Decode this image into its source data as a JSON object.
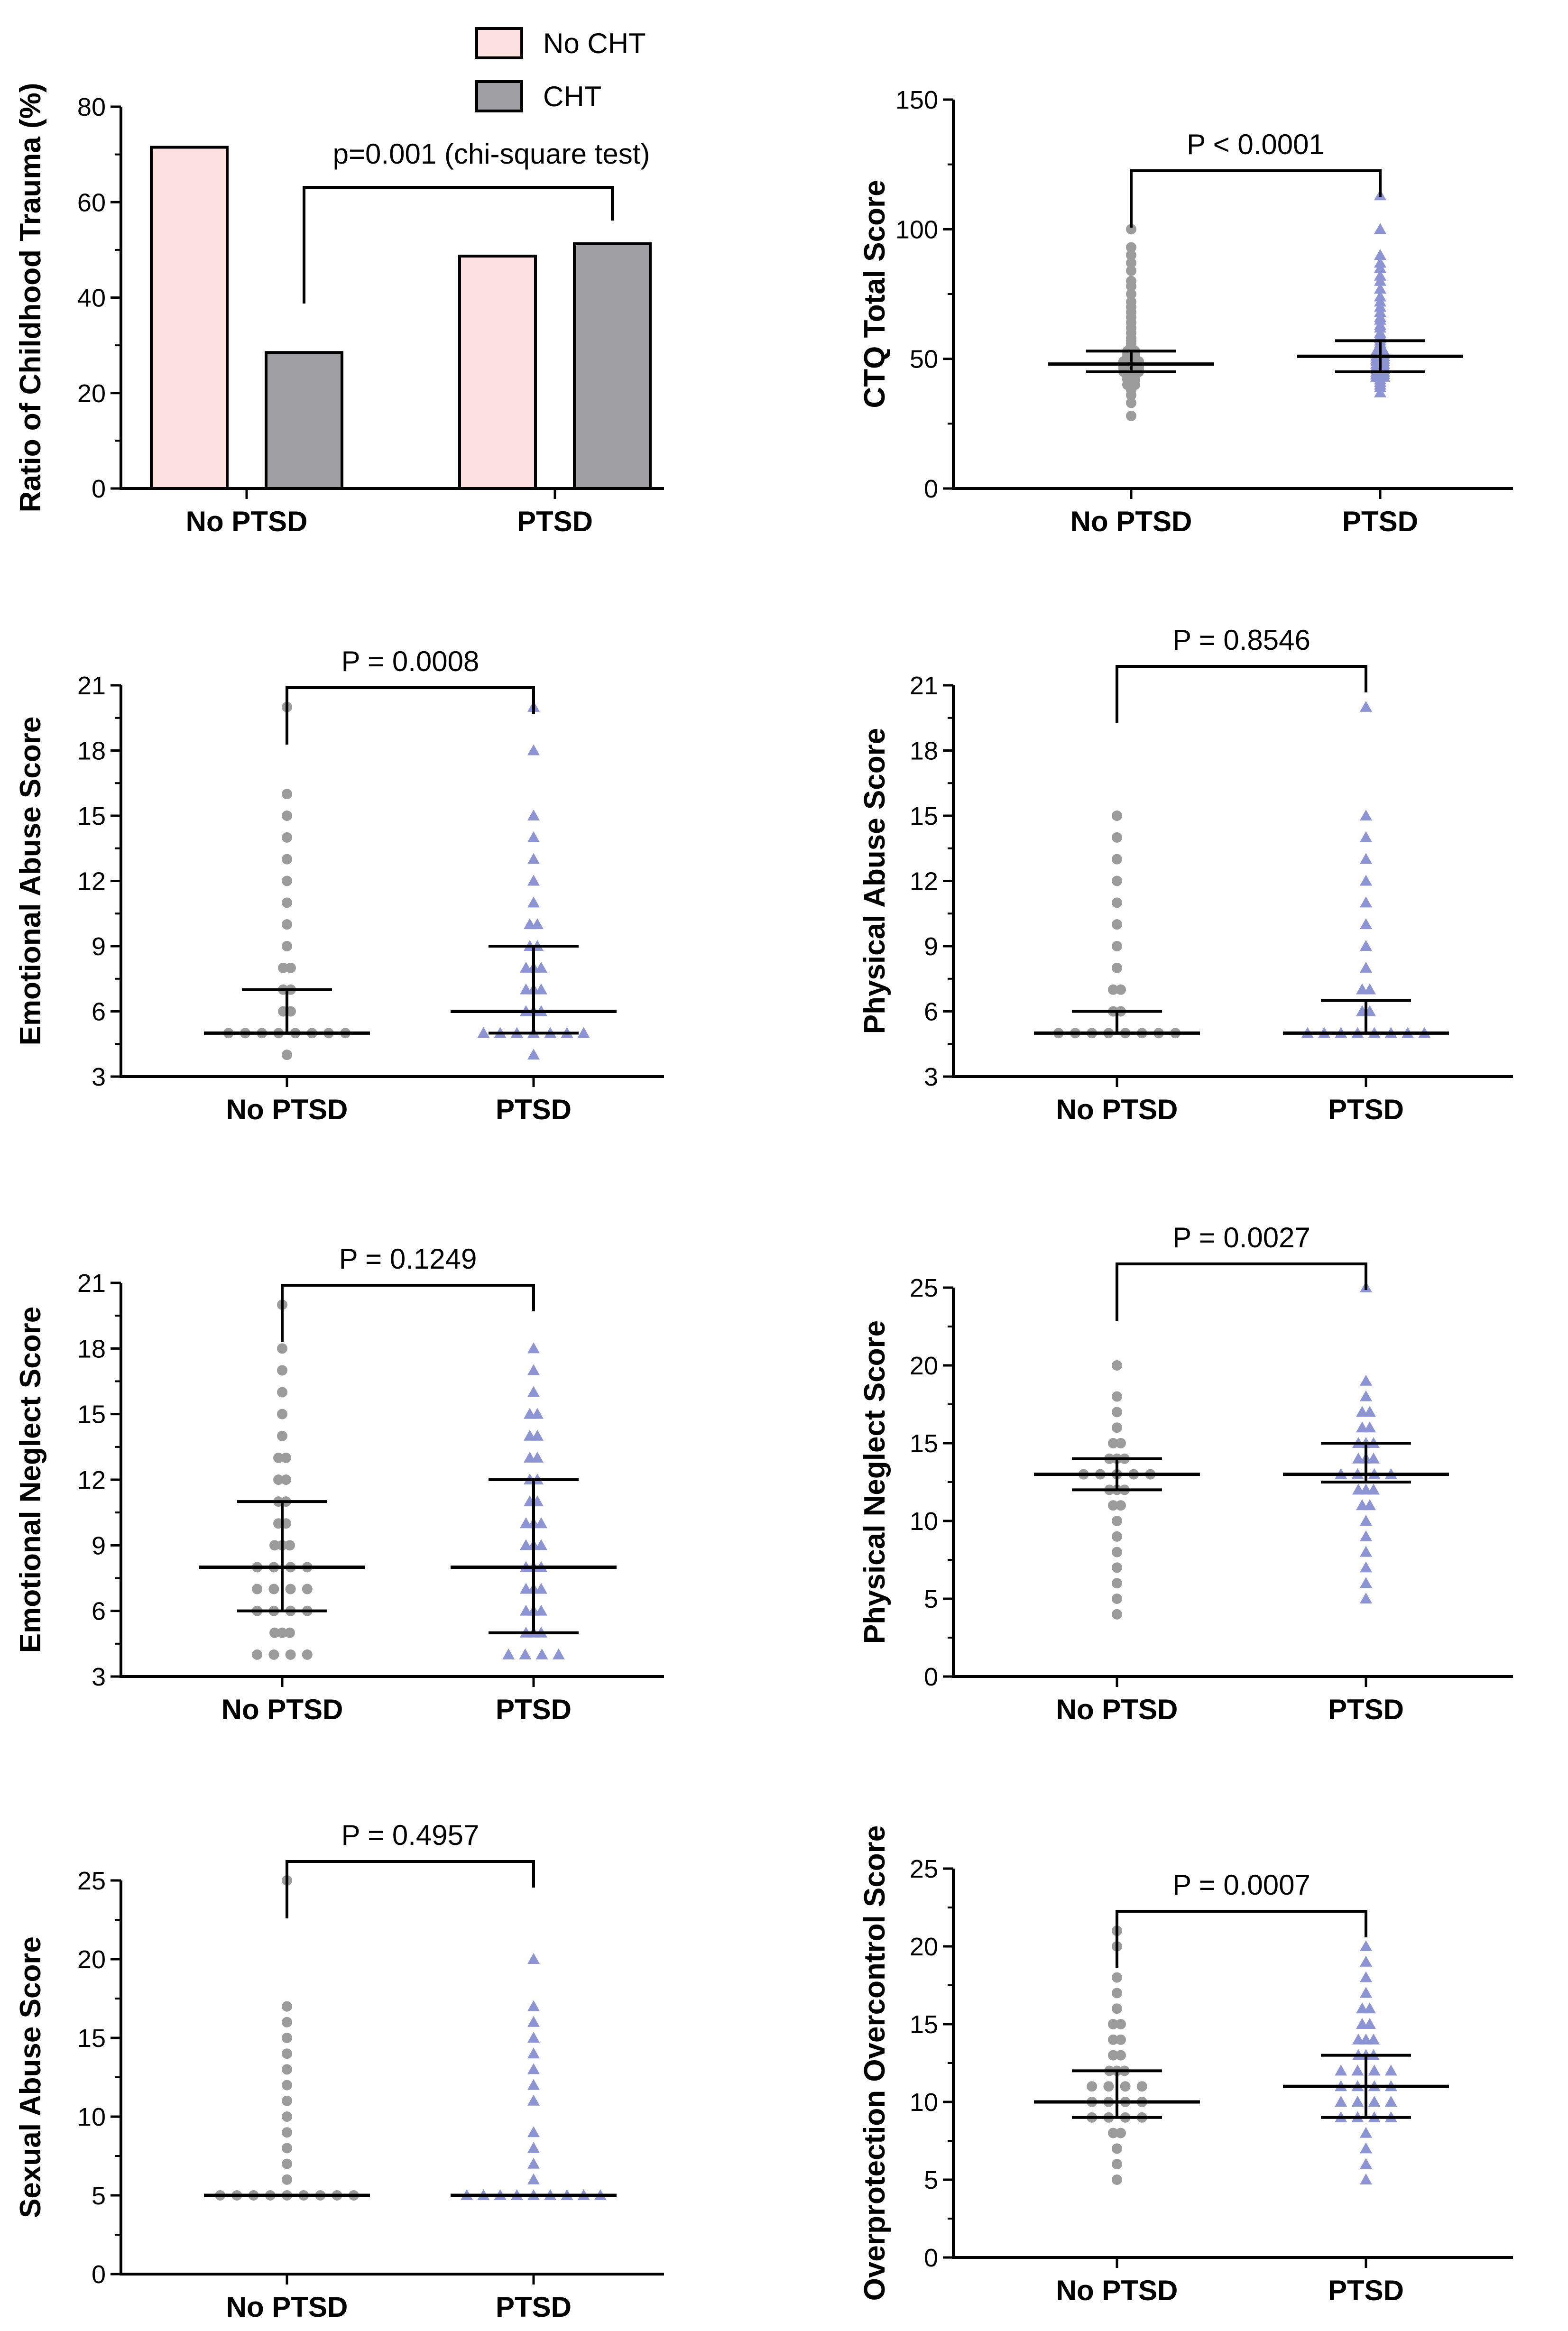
{
  "chart_data": [
    {
      "id": "cht-ratio",
      "type": "bar",
      "ylabel": "Ratio of Childhood Trauma (%)",
      "ylim": [
        0,
        80
      ],
      "yticks": [
        0,
        20,
        40,
        60,
        80
      ],
      "categories": [
        "No PTSD",
        "PTSD"
      ],
      "series": [
        {
          "name": "No CHT",
          "color": "#fde0e0",
          "values": [
            71.5,
            48.7
          ]
        },
        {
          "name": "CHT",
          "color": "#a0a0a4",
          "values": [
            28.5,
            51.3
          ]
        }
      ],
      "legend": {
        "position": "top",
        "entries": [
          "No CHT",
          "CHT"
        ]
      },
      "annotation": {
        "text": "p=0.001 (chi-square test)"
      }
    },
    {
      "id": "ctq-total",
      "type": "scatter",
      "ylabel": "CTQ Total Score",
      "ylim": [
        0,
        150
      ],
      "yticks": [
        0,
        50,
        100,
        150
      ],
      "categories": [
        "No PTSD",
        "PTSD"
      ],
      "p_text": "P < 0.0001",
      "series": [
        {
          "name": "No PTSD",
          "color": "#9b9b9b",
          "marker": "circle",
          "median": 48,
          "q1": 45,
          "q3": 53,
          "min": 28,
          "max": 100,
          "values": [
            28,
            33,
            36,
            38,
            40,
            40,
            41,
            42,
            42,
            43,
            43,
            44,
            44,
            45,
            45,
            45,
            46,
            46,
            46,
            47,
            47,
            47,
            48,
            48,
            48,
            49,
            49,
            49,
            50,
            50,
            51,
            51,
            52,
            52,
            53,
            53,
            54,
            55,
            56,
            57,
            58,
            60,
            62,
            64,
            66,
            68,
            70,
            72,
            75,
            78,
            80,
            84,
            87,
            90,
            93,
            100
          ]
        },
        {
          "name": "PTSD",
          "color": "#8c94d4",
          "marker": "triangle",
          "median": 51,
          "q1": 45,
          "q3": 57,
          "min": 37,
          "max": 113,
          "values": [
            37,
            39,
            40,
            41,
            42,
            43,
            43,
            44,
            44,
            45,
            45,
            46,
            46,
            47,
            47,
            48,
            48,
            49,
            49,
            50,
            50,
            51,
            51,
            52,
            52,
            53,
            53,
            54,
            55,
            56,
            57,
            58,
            59,
            60,
            62,
            63,
            65,
            66,
            68,
            70,
            72,
            74,
            77,
            80,
            82,
            85,
            87,
            90,
            100,
            113
          ]
        }
      ]
    },
    {
      "id": "emotional-abuse",
      "type": "scatter",
      "ylabel": "Emotional Abuse Score",
      "ylim": [
        3,
        21
      ],
      "yticks": [
        3,
        6,
        9,
        12,
        15,
        18,
        21
      ],
      "categories": [
        "No PTSD",
        "PTSD"
      ],
      "p_text": "P = 0.0008",
      "series": [
        {
          "name": "No PTSD",
          "color": "#9b9b9b",
          "marker": "circle",
          "median": 5,
          "q1": 5,
          "q3": 7,
          "min": 4,
          "max": 20,
          "values": [
            4,
            5,
            5,
            5,
            5,
            5,
            5,
            5,
            5,
            6,
            6,
            7,
            7,
            8,
            8,
            9,
            10,
            11,
            12,
            13,
            14,
            15,
            16,
            20
          ]
        },
        {
          "name": "PTSD",
          "color": "#8c94d4",
          "marker": "triangle",
          "median": 6,
          "q1": 5,
          "q3": 9,
          "min": 4,
          "max": 20,
          "values": [
            4,
            5,
            5,
            5,
            5,
            5,
            5,
            5,
            6,
            6,
            6,
            7,
            7,
            7,
            8,
            8,
            8,
            9,
            9,
            10,
            10,
            11,
            12,
            13,
            14,
            15,
            18,
            20
          ]
        }
      ]
    },
    {
      "id": "physical-abuse",
      "type": "scatter",
      "ylabel": "Physical Abuse Score",
      "ylim": [
        3,
        21
      ],
      "yticks": [
        3,
        6,
        9,
        12,
        15,
        18,
        21
      ],
      "categories": [
        "No PTSD",
        "PTSD"
      ],
      "p_text": "P = 0.8546",
      "series": [
        {
          "name": "No PTSD",
          "color": "#9b9b9b",
          "marker": "circle",
          "median": 5,
          "q1": 5,
          "q3": 6,
          "min": 5,
          "max": 15,
          "values": [
            5,
            5,
            5,
            5,
            5,
            5,
            5,
            5,
            6,
            6,
            7,
            7,
            8,
            9,
            10,
            11,
            12,
            13,
            14,
            15
          ]
        },
        {
          "name": "PTSD",
          "color": "#8c94d4",
          "marker": "triangle",
          "median": 5,
          "q1": 5,
          "q3": 6.5,
          "min": 5,
          "max": 20,
          "values": [
            5,
            5,
            5,
            5,
            5,
            5,
            5,
            5,
            6,
            6,
            7,
            7,
            8,
            9,
            10,
            11,
            12,
            13,
            14,
            15,
            20
          ]
        }
      ]
    },
    {
      "id": "emotional-neglect",
      "type": "scatter",
      "ylabel": "Emotional Neglect Score",
      "ylim": [
        3,
        21
      ],
      "yticks": [
        3,
        6,
        9,
        12,
        15,
        18,
        21
      ],
      "categories": [
        "No PTSD",
        "PTSD"
      ],
      "p_text": "P = 0.1249",
      "series": [
        {
          "name": "No PTSD",
          "color": "#9b9b9b",
          "marker": "circle",
          "median": 8,
          "q1": 6,
          "q3": 11,
          "min": 4,
          "max": 20,
          "values": [
            4,
            4,
            4,
            4,
            5,
            5,
            5,
            6,
            6,
            6,
            6,
            7,
            7,
            7,
            7,
            8,
            8,
            8,
            8,
            9,
            9,
            9,
            10,
            10,
            11,
            11,
            12,
            12,
            13,
            13,
            14,
            15,
            16,
            17,
            18,
            20
          ]
        },
        {
          "name": "PTSD",
          "color": "#8c94d4",
          "marker": "triangle",
          "median": 8,
          "q1": 5,
          "q3": 12,
          "min": 4,
          "max": 18,
          "values": [
            4,
            4,
            4,
            4,
            5,
            5,
            5,
            6,
            6,
            6,
            7,
            7,
            7,
            8,
            8,
            8,
            9,
            9,
            9,
            10,
            10,
            10,
            11,
            11,
            12,
            12,
            13,
            13,
            14,
            14,
            15,
            15,
            16,
            17,
            18
          ]
        }
      ]
    },
    {
      "id": "physical-neglect",
      "type": "scatter",
      "ylabel": "Physical Neglect Score",
      "ylim": [
        0,
        25
      ],
      "yticks": [
        0,
        5,
        10,
        15,
        20,
        25
      ],
      "categories": [
        "No PTSD",
        "PTSD"
      ],
      "p_text": "P = 0.0027",
      "series": [
        {
          "name": "No PTSD",
          "color": "#9b9b9b",
          "marker": "circle",
          "median": 13,
          "q1": 12,
          "q3": 14,
          "min": 4,
          "max": 20,
          "values": [
            4,
            5,
            6,
            7,
            8,
            9,
            10,
            11,
            11,
            12,
            12,
            12,
            13,
            13,
            13,
            13,
            13,
            14,
            14,
            14,
            15,
            15,
            16,
            17,
            18,
            20
          ]
        },
        {
          "name": "PTSD",
          "color": "#8c94d4",
          "marker": "triangle",
          "median": 13,
          "q1": 12.5,
          "q3": 15,
          "min": 5,
          "max": 25,
          "values": [
            5,
            6,
            7,
            8,
            9,
            10,
            11,
            11,
            12,
            12,
            12,
            13,
            13,
            13,
            13,
            14,
            14,
            14,
            15,
            15,
            15,
            16,
            16,
            17,
            17,
            18,
            19,
            25
          ]
        }
      ]
    },
    {
      "id": "sexual-abuse",
      "type": "scatter",
      "ylabel": "Sexual Abuse Score",
      "ylim": [
        0,
        25
      ],
      "yticks": [
        0,
        5,
        10,
        15,
        20,
        25
      ],
      "categories": [
        "No PTSD",
        "PTSD"
      ],
      "p_text": "P = 0.4957",
      "series": [
        {
          "name": "No PTSD",
          "color": "#9b9b9b",
          "marker": "circle",
          "median": 5,
          "q1": 5,
          "q3": 5,
          "min": 5,
          "max": 25,
          "values": [
            5,
            5,
            5,
            5,
            5,
            5,
            5,
            5,
            5,
            6,
            7,
            8,
            9,
            10,
            11,
            12,
            13,
            14,
            15,
            16,
            17,
            25
          ]
        },
        {
          "name": "PTSD",
          "color": "#8c94d4",
          "marker": "triangle",
          "median": 5,
          "q1": 5,
          "q3": 5,
          "min": 5,
          "max": 20,
          "values": [
            5,
            5,
            5,
            5,
            5,
            5,
            5,
            5,
            5,
            6,
            7,
            8,
            9,
            11,
            12,
            13,
            14,
            15,
            16,
            17,
            20
          ]
        }
      ]
    },
    {
      "id": "overprotection",
      "type": "scatter",
      "ylabel": "Overprotection Overcontrol Score",
      "ylim": [
        0,
        25
      ],
      "yticks": [
        0,
        5,
        10,
        15,
        20,
        25
      ],
      "categories": [
        "No PTSD",
        "PTSD"
      ],
      "p_text": "P = 0.0007",
      "series": [
        {
          "name": "No PTSD",
          "color": "#9b9b9b",
          "marker": "circle",
          "median": 10,
          "q1": 9,
          "q3": 12,
          "min": 5,
          "max": 21,
          "values": [
            5,
            6,
            7,
            8,
            8,
            9,
            9,
            9,
            9,
            10,
            10,
            10,
            10,
            11,
            11,
            11,
            11,
            12,
            12,
            12,
            13,
            13,
            14,
            14,
            15,
            15,
            16,
            17,
            18,
            20,
            21
          ]
        },
        {
          "name": "PTSD",
          "color": "#8c94d4",
          "marker": "triangle",
          "median": 11,
          "q1": 9,
          "q3": 13,
          "min": 5,
          "max": 20,
          "values": [
            5,
            6,
            7,
            8,
            9,
            9,
            9,
            9,
            10,
            10,
            10,
            10,
            11,
            11,
            11,
            11,
            12,
            12,
            12,
            12,
            13,
            13,
            13,
            14,
            14,
            14,
            15,
            15,
            16,
            16,
            17,
            18,
            19,
            20
          ]
        }
      ]
    }
  ]
}
